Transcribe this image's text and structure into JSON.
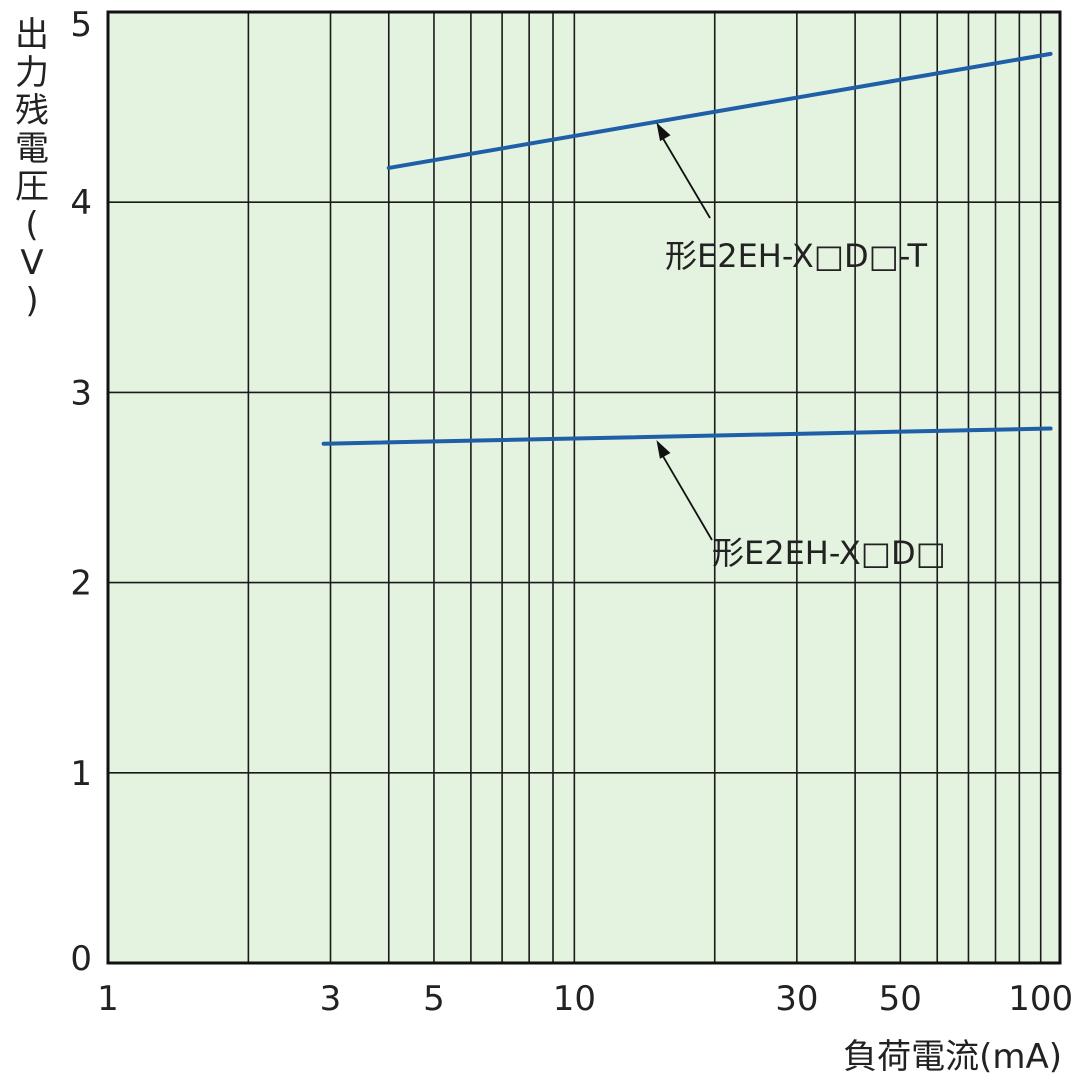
{
  "chart_data": {
    "type": "line",
    "x_scale": "log",
    "xlim": [
      1,
      110
    ],
    "ylim": [
      0,
      5
    ],
    "xlabel": "負荷電流(mA)",
    "ylabel": [
      "出",
      "力",
      "残",
      "電",
      "圧",
      "(",
      "V",
      ")"
    ],
    "x_ticks": [
      {
        "value": 1,
        "label": "1"
      },
      {
        "value": 3,
        "label": "3"
      },
      {
        "value": 5,
        "label": "5"
      },
      {
        "value": 10,
        "label": "10"
      },
      {
        "value": 30,
        "label": "30"
      },
      {
        "value": 50,
        "label": "50"
      },
      {
        "value": 100,
        "label": "100"
      }
    ],
    "y_ticks": [
      {
        "value": 0,
        "label": "0"
      },
      {
        "value": 1,
        "label": "1"
      },
      {
        "value": 2,
        "label": "2"
      },
      {
        "value": 3,
        "label": "3"
      },
      {
        "value": 4,
        "label": "4"
      },
      {
        "value": 5,
        "label": "5"
      }
    ],
    "x_gridlines": [
      2,
      3,
      4,
      5,
      6,
      7,
      8,
      9,
      10,
      20,
      30,
      40,
      50,
      60,
      70,
      80,
      90,
      100
    ],
    "y_gridlines": [
      1,
      2,
      3,
      4
    ],
    "grid": true,
    "series": [
      {
        "name": "形E2EH-X□D□-T",
        "x": [
          4,
          105
        ],
        "y": [
          4.18,
          4.78
        ],
        "color": "#1f5fa8",
        "annotation_point": [
          15,
          4.44
        ]
      },
      {
        "name": "形E2EH-X□D□",
        "x": [
          2.9,
          105
        ],
        "y": [
          2.73,
          2.81
        ],
        "color": "#1f5fa8",
        "annotation_point": [
          15,
          2.77
        ]
      }
    ],
    "colors": {
      "background": "#e4f2e0",
      "grid": "#1a1a1a",
      "line": "#1f5fa8"
    }
  }
}
